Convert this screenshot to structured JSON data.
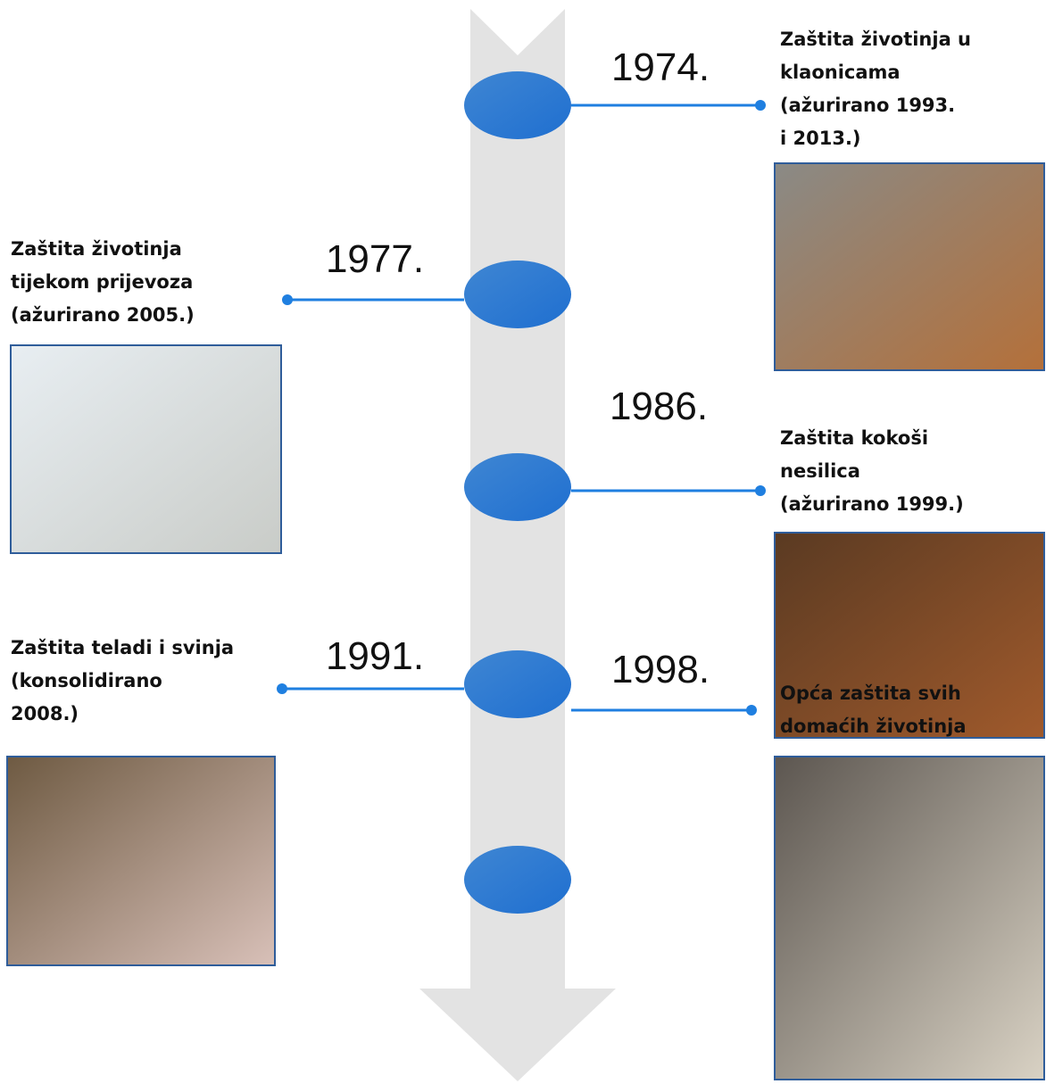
{
  "events": [
    {
      "year": "1974.",
      "label": [
        "Zaštita životinja u",
        "klaonicama",
        "(ažurirano 1993.",
        "i 2013.)"
      ]
    },
    {
      "year": "1977.",
      "label": [
        "Zaštita životinja",
        "tijekom prijevoza",
        "(ažurirano 2005.)"
      ]
    },
    {
      "year": "1986.",
      "label": [
        "Zaštita kokoši",
        "nesilica",
        "(ažurirano 1999.)"
      ]
    },
    {
      "year": "1991.",
      "label": [
        "Zaštita teladi i svinja",
        "(konsolidirano",
        "2008.)"
      ]
    },
    {
      "year": "1998.",
      "label": [
        "Opća zaštita svih",
        "domaćih životinja"
      ]
    }
  ]
}
